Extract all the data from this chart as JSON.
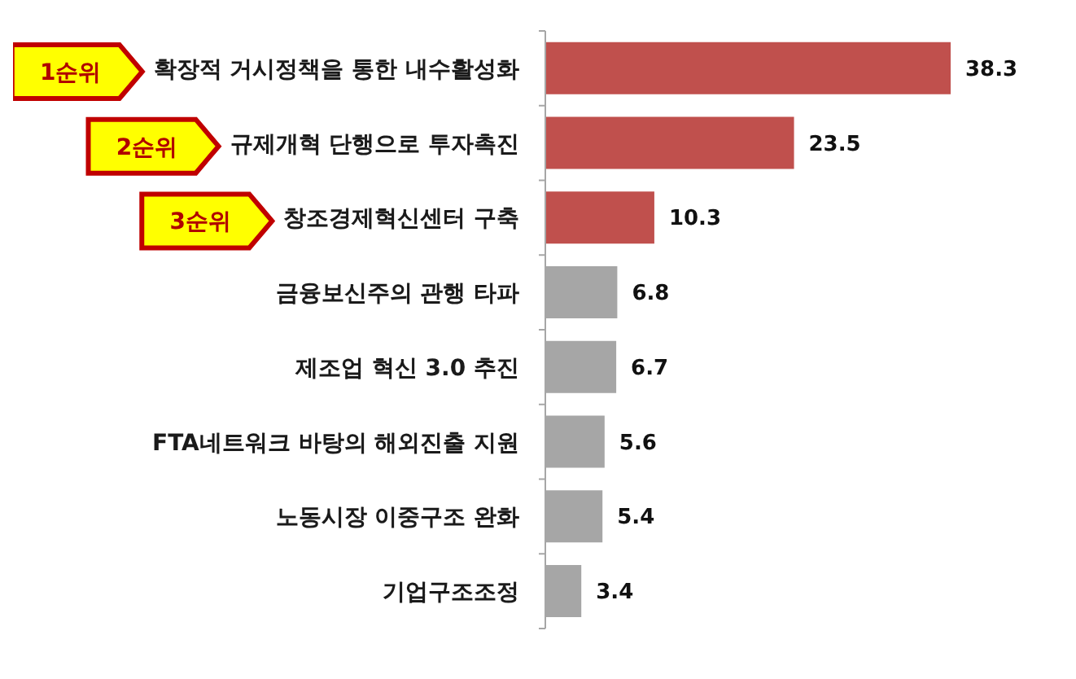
{
  "chart_data": {
    "type": "bar",
    "orientation": "horizontal",
    "categories": [
      "확장적 거시정책을 통한 내수활성화",
      "규제개혁 단행으로 투자촉진",
      "창조경제혁신센터 구축",
      "금융보신주의 관행 타파",
      "제조업 혁신 3.0 추진",
      "FTA네트워크 바탕의 해외진출 지원",
      "노동시장 이중구조 완화",
      "기업구조조정"
    ],
    "values": [
      38.3,
      23.5,
      10.3,
      6.8,
      6.7,
      5.6,
      5.4,
      3.4
    ],
    "colors": [
      "#c0504d",
      "#c0504d",
      "#c0504d",
      "#a6a6a6",
      "#a6a6a6",
      "#a6a6a6",
      "#a6a6a6",
      "#a6a6a6"
    ],
    "data_labels": true,
    "annotations": [
      "1순위",
      "2순위",
      "3순위"
    ]
  }
}
